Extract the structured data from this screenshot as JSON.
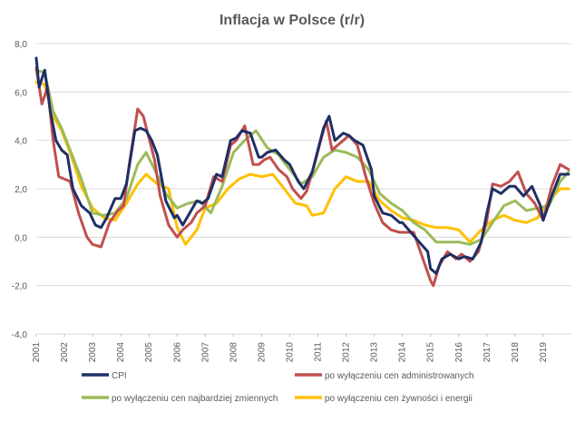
{
  "chart_data": {
    "type": "line",
    "title": "Inflacja w Polsce (r/r)",
    "xlabel": "",
    "ylabel": "",
    "ylim": [
      -4,
      8
    ],
    "xlim": [
      2001.0,
      2020.0
    ],
    "grid": true,
    "legend_position": "bottom",
    "y_ticks": [
      "-4,0",
      "-2,0",
      "0,0",
      "2,0",
      "4,0",
      "6,0",
      "8,0"
    ],
    "x_ticks": [
      "2001",
      "2002",
      "2003",
      "2004",
      "2005",
      "2006",
      "2007",
      "2008",
      "2009",
      "2010",
      "2011",
      "2012",
      "2013",
      "2014",
      "2015",
      "2016",
      "2017",
      "2018",
      "2019"
    ],
    "series": [
      {
        "name": "CPI",
        "color": "#1f2f66",
        "x": [
          2001.0,
          2001.1,
          2001.3,
          2001.5,
          2001.7,
          2001.9,
          2002.1,
          2002.3,
          2002.6,
          2002.9,
          2003.1,
          2003.3,
          2003.5,
          2003.8,
          2004.0,
          2004.2,
          2004.5,
          2004.7,
          2004.9,
          2005.1,
          2005.3,
          2005.6,
          2005.9,
          2006.0,
          2006.2,
          2006.4,
          2006.7,
          2006.9,
          2007.1,
          2007.4,
          2007.6,
          2007.9,
          2008.1,
          2008.3,
          2008.6,
          2008.9,
          2009.0,
          2009.2,
          2009.5,
          2009.8,
          2010.0,
          2010.3,
          2010.5,
          2010.8,
          2011.0,
          2011.2,
          2011.4,
          2011.6,
          2011.9,
          2012.1,
          2012.3,
          2012.6,
          2012.9,
          2013.0,
          2013.3,
          2013.6,
          2013.9,
          2014.0,
          2014.3,
          2014.6,
          2014.9,
          2015.0,
          2015.2,
          2015.4,
          2015.7,
          2016.0,
          2016.2,
          2016.5,
          2016.8,
          2017.0,
          2017.2,
          2017.5,
          2017.8,
          2018.0,
          2018.3,
          2018.6,
          2018.9,
          2019.0,
          2019.3,
          2019.6,
          2019.9
        ],
        "values": [
          7.4,
          6.2,
          6.9,
          5.2,
          4.0,
          3.6,
          3.4,
          2.0,
          1.3,
          1.0,
          0.5,
          0.4,
          0.8,
          1.6,
          1.6,
          2.2,
          4.4,
          4.5,
          4.4,
          4.0,
          3.4,
          1.5,
          0.8,
          0.9,
          0.5,
          0.9,
          1.5,
          1.4,
          1.6,
          2.6,
          2.5,
          4.0,
          4.1,
          4.4,
          4.3,
          3.3,
          3.3,
          3.5,
          3.6,
          3.2,
          3.0,
          2.3,
          2.0,
          2.7,
          3.6,
          4.5,
          5.0,
          4.0,
          4.3,
          4.2,
          4.0,
          3.8,
          2.8,
          1.7,
          1.0,
          0.9,
          0.6,
          0.6,
          0.2,
          -0.2,
          -0.6,
          -1.3,
          -1.5,
          -0.9,
          -0.7,
          -0.9,
          -0.8,
          -0.9,
          -0.2,
          1.0,
          2.0,
          1.8,
          2.1,
          2.1,
          1.7,
          2.1,
          1.3,
          0.7,
          1.7,
          2.6,
          2.6
        ]
      },
      {
        "name": "po wyłączeniu cen administrowanych",
        "color": "#c0504d",
        "x": [
          2001.0,
          2001.2,
          2001.4,
          2001.6,
          2001.8,
          2002.0,
          2002.2,
          2002.5,
          2002.8,
          2003.0,
          2003.3,
          2003.6,
          2003.9,
          2004.1,
          2004.3,
          2004.6,
          2004.8,
          2005.0,
          2005.2,
          2005.4,
          2005.7,
          2006.0,
          2006.2,
          2006.5,
          2006.7,
          2007.0,
          2007.3,
          2007.6,
          2007.9,
          2008.1,
          2008.4,
          2008.7,
          2008.9,
          2009.1,
          2009.3,
          2009.6,
          2009.9,
          2010.1,
          2010.4,
          2010.6,
          2010.9,
          2011.1,
          2011.3,
          2011.5,
          2011.7,
          2011.9,
          2012.1,
          2012.4,
          2012.7,
          2013.0,
          2013.3,
          2013.6,
          2013.9,
          2014.1,
          2014.4,
          2014.7,
          2015.0,
          2015.1,
          2015.3,
          2015.6,
          2015.9,
          2016.1,
          2016.4,
          2016.7,
          2017.0,
          2017.2,
          2017.5,
          2017.8,
          2018.1,
          2018.4,
          2018.7,
          2019.0,
          2019.3,
          2019.6,
          2019.9
        ],
        "values": [
          7.0,
          5.5,
          6.2,
          4.0,
          2.5,
          2.4,
          2.3,
          1.0,
          0.0,
          -0.3,
          -0.4,
          0.6,
          1.1,
          1.3,
          3.0,
          5.3,
          5.0,
          4.1,
          3.2,
          1.7,
          0.5,
          0.0,
          0.3,
          0.6,
          1.0,
          1.3,
          2.5,
          2.3,
          3.8,
          4.0,
          4.6,
          3.0,
          3.0,
          3.2,
          3.3,
          2.8,
          2.5,
          2.0,
          1.6,
          1.9,
          3.1,
          4.0,
          4.8,
          3.6,
          3.8,
          4.0,
          4.2,
          3.8,
          2.5,
          1.4,
          0.6,
          0.3,
          0.2,
          0.2,
          0.2,
          -0.8,
          -1.8,
          -2.0,
          -1.2,
          -0.6,
          -0.9,
          -0.7,
          -1.0,
          -0.6,
          0.7,
          2.2,
          2.1,
          2.3,
          2.7,
          1.8,
          1.4,
          0.7,
          2.1,
          3.0,
          2.8
        ]
      },
      {
        "name": "po wyłączeniu cen najbardziej zmiennych",
        "color": "#9bbb59",
        "x": [
          2001.0,
          2001.3,
          2001.6,
          2001.9,
          2002.2,
          2002.6,
          2003.0,
          2003.4,
          2003.8,
          2004.2,
          2004.6,
          2004.9,
          2005.2,
          2005.6,
          2006.0,
          2006.4,
          2006.8,
          2007.2,
          2007.6,
          2008.0,
          2008.4,
          2008.8,
          2009.2,
          2009.6,
          2010.0,
          2010.4,
          2010.8,
          2011.2,
          2011.6,
          2012.0,
          2012.4,
          2012.8,
          2013.2,
          2013.6,
          2014.0,
          2014.4,
          2014.8,
          2015.2,
          2015.6,
          2016.0,
          2016.4,
          2016.8,
          2017.2,
          2017.6,
          2018.0,
          2018.4,
          2018.8,
          2019.2,
          2019.6,
          2019.9
        ],
        "values": [
          6.9,
          6.8,
          5.2,
          4.5,
          3.6,
          2.4,
          1.0,
          0.9,
          1.0,
          1.6,
          3.0,
          3.5,
          2.8,
          1.8,
          1.2,
          1.4,
          1.5,
          1.0,
          2.1,
          3.5,
          4.0,
          4.4,
          3.7,
          3.4,
          2.8,
          2.2,
          2.5,
          3.3,
          3.6,
          3.5,
          3.3,
          2.8,
          1.8,
          1.4,
          1.1,
          0.6,
          0.3,
          -0.2,
          -0.2,
          -0.2,
          -0.3,
          -0.1,
          0.6,
          1.3,
          1.5,
          1.1,
          1.2,
          1.3,
          2.3,
          2.7
        ]
      },
      {
        "name": "po wyłączeniu cen żywności i energii",
        "color": "#ffc000",
        "x": [
          2001.0,
          2001.3,
          2001.6,
          2001.9,
          2002.2,
          2002.6,
          2003.0,
          2003.4,
          2003.8,
          2004.2,
          2004.6,
          2004.9,
          2005.3,
          2005.7,
          2006.0,
          2006.3,
          2006.7,
          2007.0,
          2007.4,
          2007.8,
          2008.2,
          2008.6,
          2009.0,
          2009.4,
          2009.8,
          2010.2,
          2010.6,
          2010.8,
          2011.2,
          2011.6,
          2012.0,
          2012.4,
          2012.8,
          2013.2,
          2013.6,
          2014.0,
          2014.4,
          2014.8,
          2015.2,
          2015.6,
          2016.0,
          2016.4,
          2016.8,
          2017.2,
          2017.6,
          2018.0,
          2018.4,
          2018.8,
          2019.2,
          2019.6,
          2019.9
        ],
        "values": [
          6.4,
          6.3,
          5.0,
          4.4,
          3.5,
          2.1,
          1.2,
          0.8,
          0.7,
          1.4,
          2.2,
          2.6,
          2.2,
          2.0,
          0.4,
          -0.3,
          0.3,
          1.2,
          1.4,
          2.0,
          2.4,
          2.6,
          2.5,
          2.6,
          2.0,
          1.4,
          1.3,
          0.9,
          1.0,
          2.0,
          2.5,
          2.3,
          2.3,
          1.5,
          1.1,
          0.8,
          0.7,
          0.5,
          0.4,
          0.4,
          0.3,
          -0.2,
          0.3,
          0.7,
          0.9,
          0.7,
          0.6,
          0.8,
          1.5,
          2.0,
          2.0
        ]
      }
    ]
  }
}
